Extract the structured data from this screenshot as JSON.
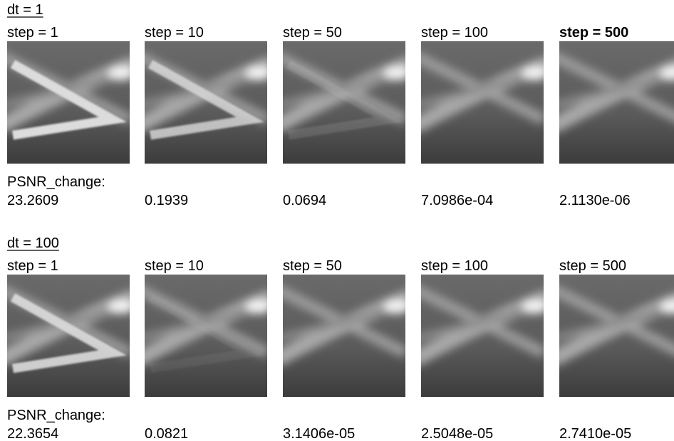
{
  "rows": [
    {
      "dt": "dt = 1",
      "steps": [
        "step = 1",
        "step = 10",
        "step = 50",
        "step = 100",
        "step = 500"
      ],
      "psnr_label": "PSNR_change:",
      "psnr": [
        "23.2609",
        "0.1939",
        "0.0694",
        "7.0986e-04",
        "2.1130e-06"
      ]
    },
    {
      "dt": "dt = 100",
      "steps": [
        "step = 1",
        "step = 10",
        "step = 50",
        "step = 100",
        "step = 500"
      ],
      "psnr_label": "PSNR_change:",
      "psnr": [
        "22.3654",
        "0.0821",
        "3.1406e-05",
        "2.5048e-05",
        "2.7410e-05"
      ]
    }
  ]
}
